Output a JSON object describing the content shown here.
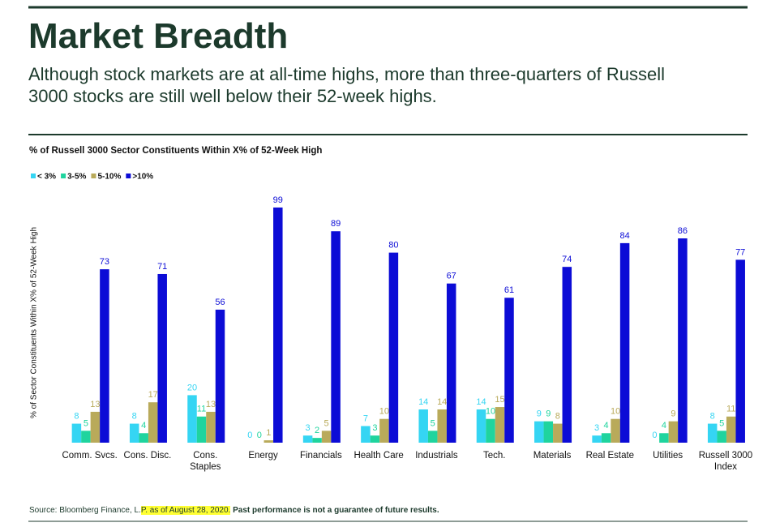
{
  "header": {
    "title": "Market Breadth",
    "subtitle": "Although stock markets are at all-time highs, more than three-quarters of Russell\n3000 stocks are still well below their 52-week highs."
  },
  "chart_data": {
    "type": "bar",
    "title": "% of Russell 3000 Sector Constituents Within X% of 52-Week High",
    "y_label": "% of Sector Constituents Within X% of 52-Week High",
    "categories": [
      "Comm. Svcs.",
      "Cons. Disc.",
      "Cons.\nStaples",
      "Energy",
      "Financials",
      "Health Care",
      "Industrials",
      "Tech.",
      "Materials",
      "Real Estate",
      "Utilities",
      "Russell 3000\nIndex"
    ],
    "series": [
      {
        "name": "< 3%",
        "color": "#35d5f3",
        "values": [
          8,
          8,
          20,
          0,
          3,
          7,
          14,
          14,
          9,
          3,
          0,
          8
        ]
      },
      {
        "name": "3-5%",
        "color": "#1fd49e",
        "values": [
          5,
          4,
          11,
          0,
          2,
          3,
          5,
          10,
          9,
          4,
          4,
          5
        ]
      },
      {
        "name": "5-10%",
        "color": "#b9aa5a",
        "values": [
          13,
          17,
          13,
          1,
          5,
          10,
          14,
          15,
          8,
          10,
          9,
          11
        ]
      },
      {
        "name": ">10%",
        "color": "#0c0cd6",
        "values": [
          73,
          71,
          56,
          99,
          89,
          80,
          67,
          61,
          74,
          84,
          86,
          77
        ]
      }
    ],
    "ylim": [
      0,
      100
    ],
    "data_labels": true
  },
  "footer": {
    "source": "Source: Bloomberg Finance, L.",
    "source_date": "P. as of August 28, 2020.",
    "disclaimer": "Past performance is not a guarantee of future results."
  }
}
